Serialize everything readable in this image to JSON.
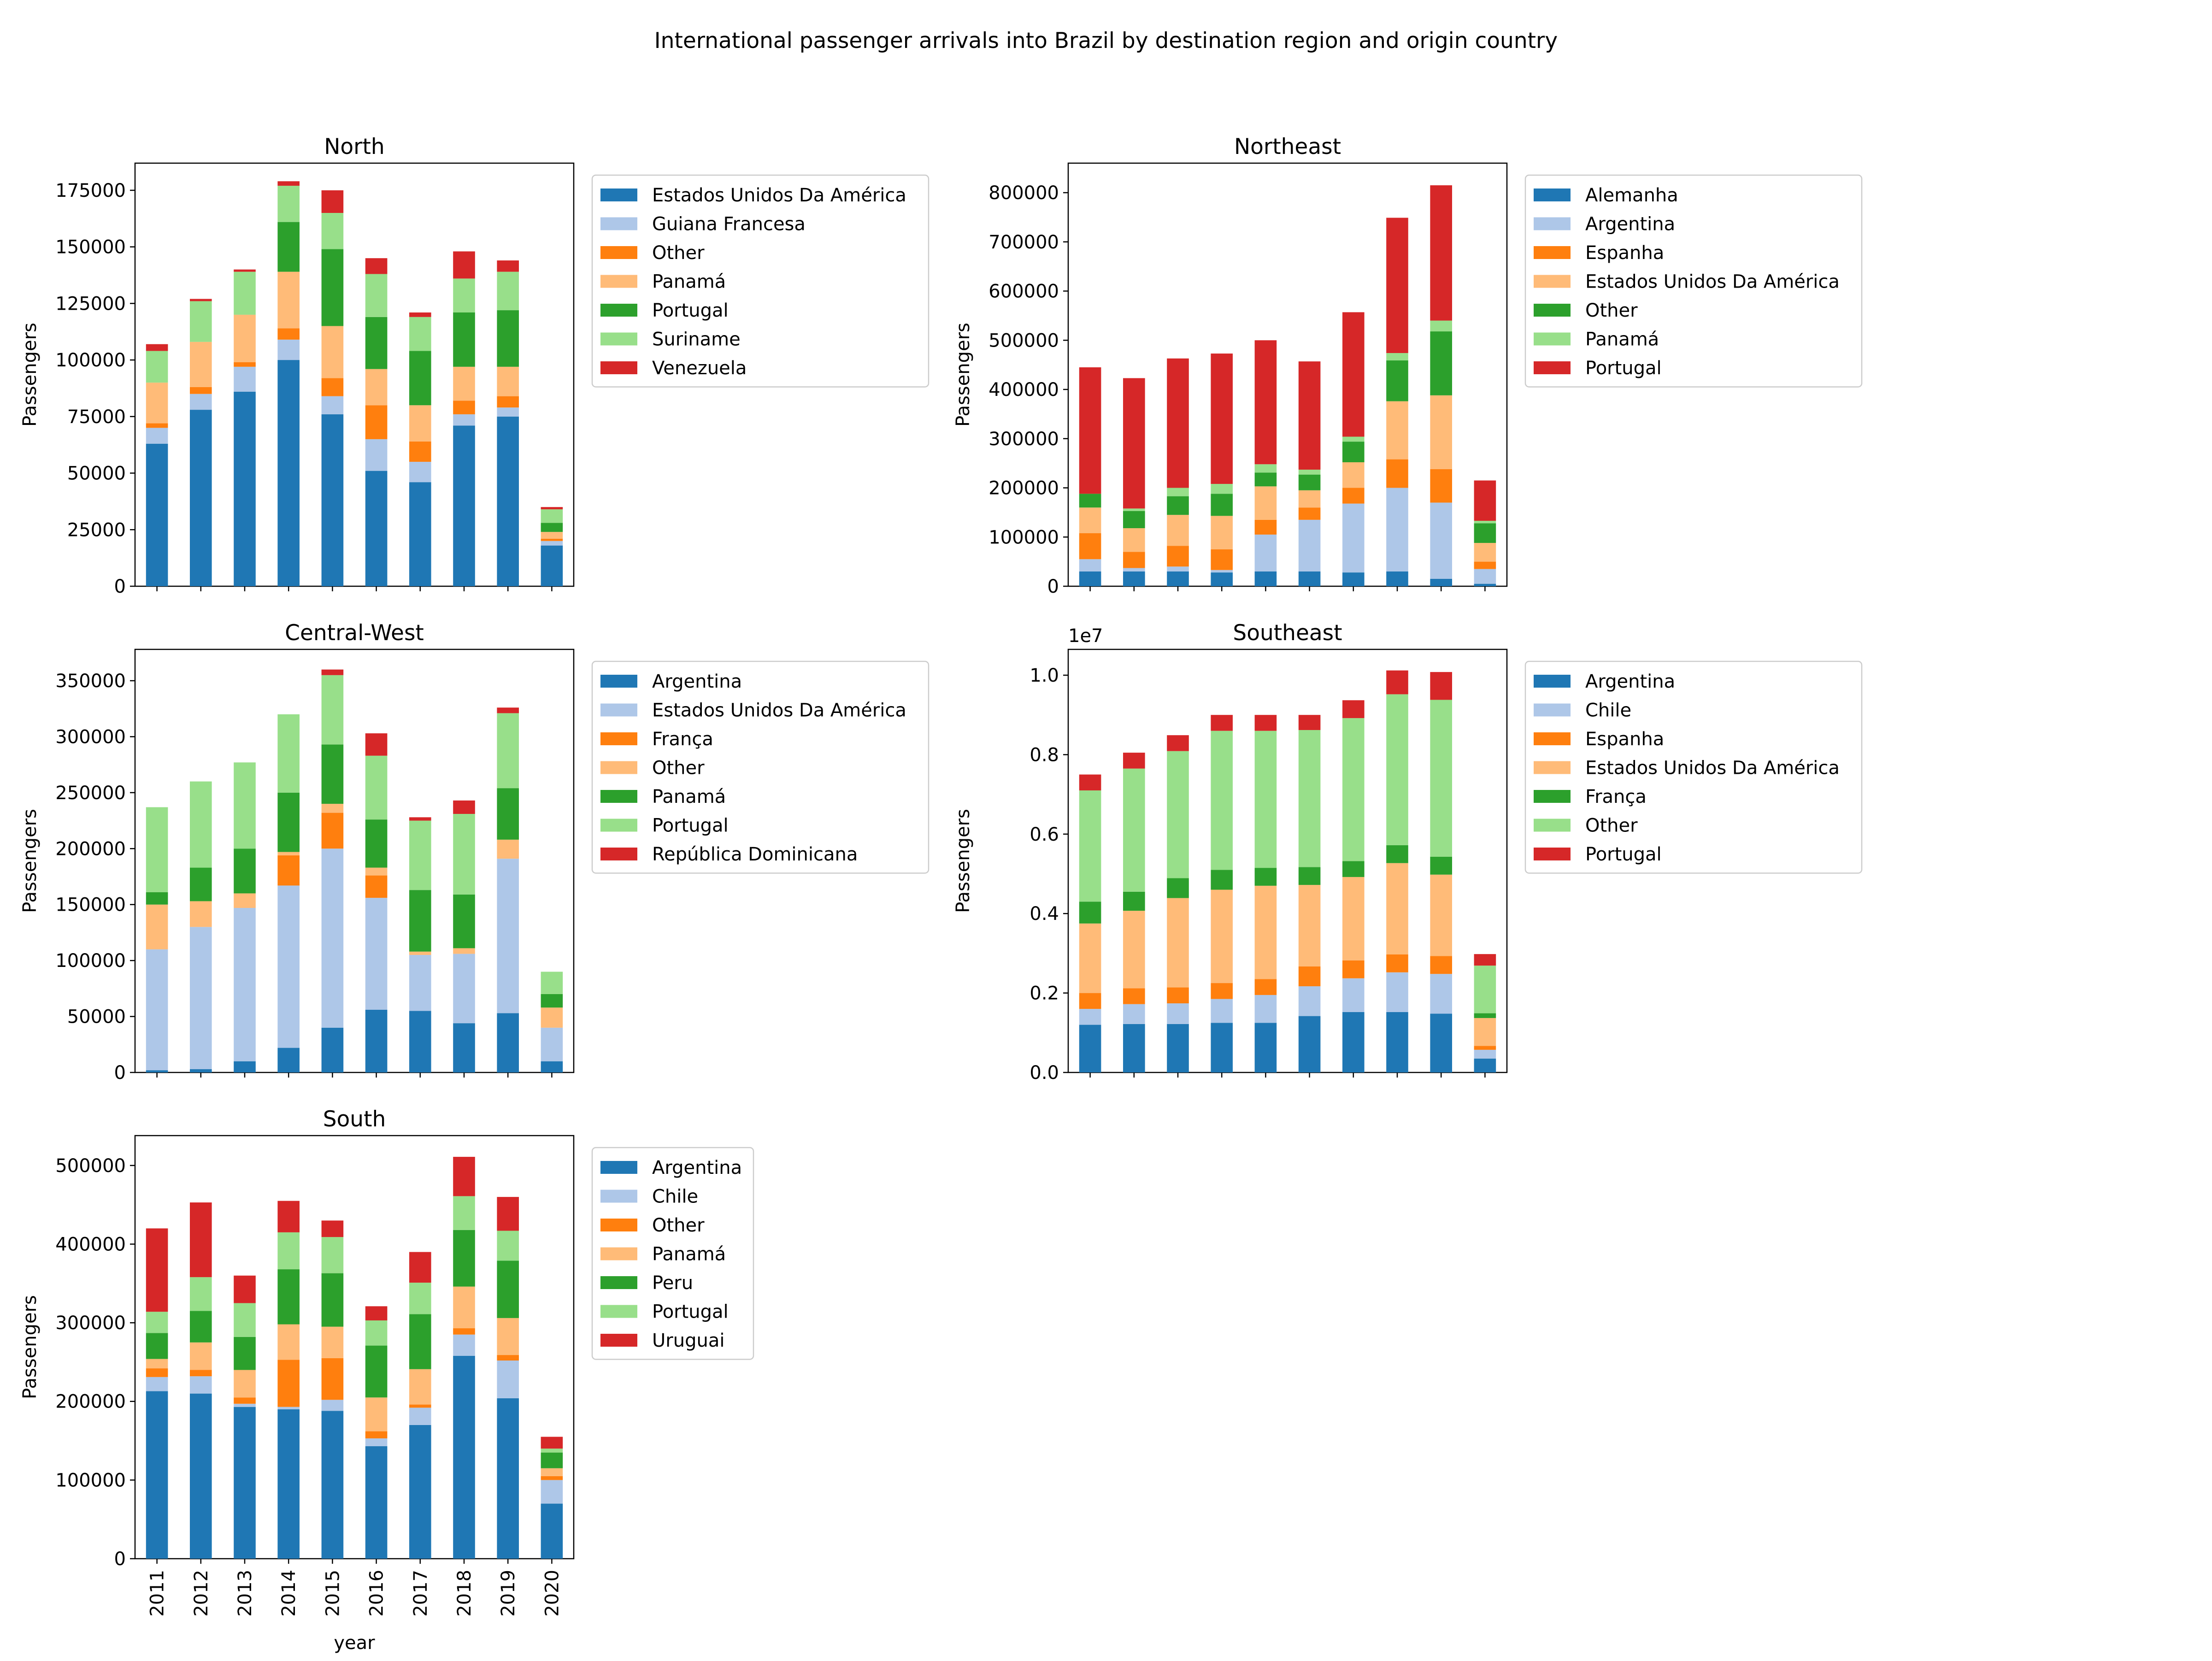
{
  "figure": {
    "title": "International passenger arrivals into Brazil by destination region and origin country"
  },
  "chart_data": [
    {
      "type": "bar",
      "stacked": true,
      "title": "North",
      "xlabel": "",
      "ylabel": "Passengers",
      "categories": [
        "2011",
        "2012",
        "2013",
        "2014",
        "2015",
        "2016",
        "2017",
        "2018",
        "2019",
        "2020"
      ],
      "ylim": [
        0,
        187000
      ],
      "yticks": [
        0,
        25000,
        50000,
        75000,
        100000,
        125000,
        150000,
        175000
      ],
      "tick_labels_visible": false,
      "legend": "right-outside-top",
      "series": [
        {
          "name": "Estados Unidos Da América",
          "color": "#1f77b4",
          "values": [
            63000,
            78000,
            86000,
            100000,
            76000,
            51000,
            46000,
            71000,
            75000,
            18000
          ]
        },
        {
          "name": "Guiana Francesa",
          "color": "#aec7e8",
          "values": [
            7000,
            7000,
            11000,
            9000,
            8000,
            14000,
            9000,
            5000,
            4000,
            2000
          ]
        },
        {
          "name": "Other",
          "color": "#ff7f0e",
          "values": [
            2000,
            3000,
            2000,
            5000,
            8000,
            15000,
            9000,
            6000,
            5000,
            1000
          ]
        },
        {
          "name": "Panamá",
          "color": "#ffbb78",
          "values": [
            18000,
            20000,
            21000,
            25000,
            23000,
            16000,
            16000,
            15000,
            13000,
            3000
          ]
        },
        {
          "name": "Portugal",
          "color": "#2ca02c",
          "values": [
            0,
            0,
            0,
            22000,
            34000,
            23000,
            24000,
            24000,
            25000,
            4000
          ]
        },
        {
          "name": "Suriname",
          "color": "#98df8a",
          "values": [
            14000,
            18000,
            19000,
            16000,
            16000,
            19000,
            15000,
            15000,
            17000,
            6000
          ]
        },
        {
          "name": "Venezuela",
          "color": "#d62728",
          "values": [
            3000,
            1000,
            1000,
            2000,
            10000,
            7000,
            2000,
            12000,
            5000,
            1000
          ]
        }
      ]
    },
    {
      "type": "bar",
      "stacked": true,
      "title": "Northeast",
      "xlabel": "",
      "ylabel": "Passengers",
      "categories": [
        "2011",
        "2012",
        "2013",
        "2014",
        "2015",
        "2016",
        "2017",
        "2018",
        "2019",
        "2020"
      ],
      "ylim": [
        0,
        860000
      ],
      "yticks": [
        0,
        100000,
        200000,
        300000,
        400000,
        500000,
        600000,
        700000,
        800000
      ],
      "tick_labels_visible": false,
      "legend": "right-outside-top",
      "series": [
        {
          "name": "Alemanha",
          "color": "#1f77b4",
          "values": [
            30000,
            30000,
            30000,
            28000,
            30000,
            30000,
            28000,
            30000,
            15000,
            5000
          ]
        },
        {
          "name": "Argentina",
          "color": "#aec7e8",
          "values": [
            25000,
            7000,
            10000,
            5000,
            75000,
            105000,
            140000,
            170000,
            155000,
            30000
          ]
        },
        {
          "name": "Espanha",
          "color": "#ff7f0e",
          "values": [
            53000,
            33000,
            42000,
            42000,
            30000,
            25000,
            32000,
            58000,
            68000,
            15000
          ]
        },
        {
          "name": "Estados Unidos Da América",
          "color": "#ffbb78",
          "values": [
            52000,
            48000,
            63000,
            68000,
            68000,
            35000,
            52000,
            118000,
            150000,
            38000
          ]
        },
        {
          "name": "Other",
          "color": "#2ca02c",
          "values": [
            28000,
            35000,
            38000,
            45000,
            28000,
            32000,
            42000,
            83000,
            130000,
            40000
          ]
        },
        {
          "name": "Panamá",
          "color": "#98df8a",
          "values": [
            0,
            5000,
            17000,
            20000,
            17000,
            10000,
            10000,
            15000,
            22000,
            5000
          ]
        },
        {
          "name": "Portugal",
          "color": "#d62728",
          "values": [
            257000,
            265000,
            263000,
            265000,
            252000,
            220000,
            253000,
            275000,
            275000,
            82000
          ]
        }
      ]
    },
    {
      "type": "bar",
      "stacked": true,
      "title": "Central-West",
      "xlabel": "",
      "ylabel": "Passengers",
      "categories": [
        "2011",
        "2012",
        "2013",
        "2014",
        "2015",
        "2016",
        "2017",
        "2018",
        "2019",
        "2020"
      ],
      "ylim": [
        0,
        378000
      ],
      "yticks": [
        0,
        50000,
        100000,
        150000,
        200000,
        250000,
        300000,
        350000
      ],
      "tick_labels_visible": false,
      "legend": "right-outside-top",
      "series": [
        {
          "name": "Argentina",
          "color": "#1f77b4",
          "values": [
            2000,
            3000,
            10000,
            22000,
            40000,
            56000,
            55000,
            44000,
            53000,
            10000
          ]
        },
        {
          "name": "Estados Unidos Da América",
          "color": "#aec7e8",
          "values": [
            108000,
            127000,
            137000,
            145000,
            160000,
            100000,
            50000,
            62000,
            138000,
            30000
          ]
        },
        {
          "name": "França",
          "color": "#ff7f0e",
          "values": [
            0,
            0,
            0,
            27000,
            32000,
            20000,
            0,
            0,
            0,
            0
          ]
        },
        {
          "name": "Other",
          "color": "#ffbb78",
          "values": [
            40000,
            23000,
            13000,
            3000,
            8000,
            7000,
            3000,
            5000,
            17000,
            18000
          ]
        },
        {
          "name": "Panamá",
          "color": "#2ca02c",
          "values": [
            11000,
            30000,
            40000,
            53000,
            53000,
            43000,
            55000,
            48000,
            46000,
            12000
          ]
        },
        {
          "name": "Portugal",
          "color": "#98df8a",
          "values": [
            76000,
            77000,
            77000,
            70000,
            62000,
            57000,
            62000,
            72000,
            67000,
            20000
          ]
        },
        {
          "name": "República Dominicana",
          "color": "#d62728",
          "values": [
            0,
            0,
            0,
            0,
            5000,
            20000,
            3000,
            12000,
            5000,
            0
          ]
        }
      ]
    },
    {
      "type": "bar",
      "stacked": true,
      "title": "Southeast",
      "xlabel": "",
      "ylabel": "Passengers",
      "y_offset_label": "1e7",
      "categories": [
        "2011",
        "2012",
        "2013",
        "2014",
        "2015",
        "2016",
        "2017",
        "2018",
        "2019",
        "2020"
      ],
      "ylim": [
        0,
        10.65
      ],
      "yticks": [
        0.0,
        0.2,
        0.4,
        0.6,
        0.8,
        1.0
      ],
      "y_scale_factor": 10,
      "tick_labels_visible": false,
      "legend": "right-outside-top",
      "series": [
        {
          "name": "Argentina",
          "color": "#1f77b4",
          "values": [
            1.2,
            1.22,
            1.22,
            1.25,
            1.25,
            1.42,
            1.52,
            1.52,
            1.48,
            0.35
          ]
        },
        {
          "name": "Chile",
          "color": "#aec7e8",
          "values": [
            0.4,
            0.5,
            0.52,
            0.6,
            0.7,
            0.75,
            0.85,
            1.0,
            1.0,
            0.22
          ]
        },
        {
          "name": "Espanha",
          "color": "#ff7f0e",
          "values": [
            0.4,
            0.4,
            0.4,
            0.4,
            0.4,
            0.5,
            0.45,
            0.45,
            0.45,
            0.1
          ]
        },
        {
          "name": "Estados Unidos Da América",
          "color": "#ffbb78",
          "values": [
            1.75,
            1.95,
            2.25,
            2.35,
            2.35,
            2.05,
            2.1,
            2.3,
            2.05,
            0.7
          ]
        },
        {
          "name": "França",
          "color": "#2ca02c",
          "values": [
            0.55,
            0.48,
            0.5,
            0.5,
            0.45,
            0.45,
            0.4,
            0.45,
            0.45,
            0.12
          ]
        },
        {
          "name": "Other",
          "color": "#98df8a",
          "values": [
            2.8,
            3.1,
            3.2,
            3.5,
            3.45,
            3.45,
            3.6,
            3.8,
            3.95,
            1.2
          ]
        },
        {
          "name": "Portugal",
          "color": "#d62728",
          "values": [
            0.4,
            0.4,
            0.4,
            0.4,
            0.4,
            0.38,
            0.45,
            0.6,
            0.7,
            0.29
          ]
        }
      ]
    },
    {
      "type": "bar",
      "stacked": true,
      "title": "South",
      "xlabel": "year",
      "ylabel": "Passengers",
      "categories": [
        "2011",
        "2012",
        "2013",
        "2014",
        "2015",
        "2016",
        "2017",
        "2018",
        "2019",
        "2020"
      ],
      "ylim": [
        0,
        538000
      ],
      "yticks": [
        0,
        100000,
        200000,
        300000,
        400000,
        500000
      ],
      "tick_labels_visible": true,
      "legend": "right-outside-top",
      "series": [
        {
          "name": "Argentina",
          "color": "#1f77b4",
          "values": [
            213000,
            210000,
            193000,
            190000,
            188000,
            143000,
            170000,
            258000,
            204000,
            70000
          ]
        },
        {
          "name": "Chile",
          "color": "#aec7e8",
          "values": [
            18000,
            22000,
            4000,
            3000,
            14000,
            10000,
            22000,
            27000,
            48000,
            30000
          ]
        },
        {
          "name": "Other",
          "color": "#ff7f0e",
          "values": [
            11000,
            8000,
            8000,
            60000,
            53000,
            9000,
            4000,
            8000,
            7000,
            5000
          ]
        },
        {
          "name": "Panamá",
          "color": "#ffbb78",
          "values": [
            12000,
            35000,
            35000,
            45000,
            40000,
            43000,
            45000,
            53000,
            47000,
            10000
          ]
        },
        {
          "name": "Peru",
          "color": "#2ca02c",
          "values": [
            33000,
            40000,
            42000,
            70000,
            68000,
            66000,
            70000,
            72000,
            73000,
            20000
          ]
        },
        {
          "name": "Portugal",
          "color": "#98df8a",
          "values": [
            27000,
            43000,
            43000,
            47000,
            46000,
            32000,
            40000,
            43000,
            38000,
            5000
          ]
        },
        {
          "name": "Uruguai",
          "color": "#d62728",
          "values": [
            106000,
            95000,
            35000,
            40000,
            21000,
            18000,
            39000,
            50000,
            43000,
            15000
          ]
        }
      ]
    }
  ]
}
